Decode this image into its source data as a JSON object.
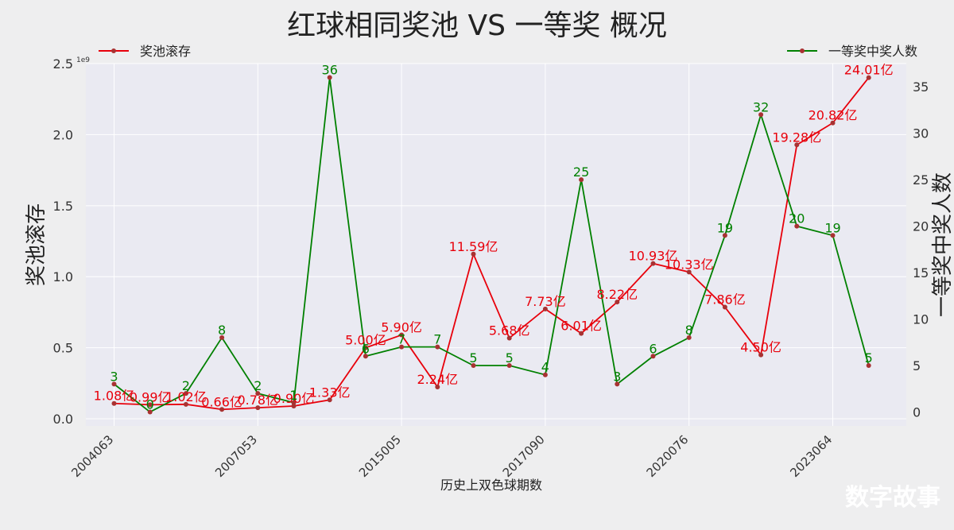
{
  "chart_data": {
    "type": "line",
    "title": "红球相同奖池 VS 一等奖 概况",
    "xlabel": "历史上双色球期数",
    "ylabel_left": "奖池滚存",
    "ylabel_right": "一等奖中奖人数",
    "left_scale_note": "1e9",
    "x_tick_labels": [
      "2004063",
      "2007053",
      "2015005",
      "2017090",
      "2020076",
      "2023064"
    ],
    "ylim_left": [
      -0.05,
      2.5
    ],
    "ylim_right": [
      -1.5,
      37.5
    ],
    "left_ticks": [
      "0.0",
      "0.5",
      "1.0",
      "1.5",
      "2.0",
      "2.5"
    ],
    "left_tick_values": [
      0,
      0.5,
      1.0,
      1.5,
      2.0,
      2.5
    ],
    "right_ticks": [
      "0",
      "5",
      "10",
      "15",
      "20",
      "25",
      "30",
      "35"
    ],
    "right_tick_values": [
      0,
      5,
      10,
      15,
      20,
      25,
      30,
      35
    ],
    "grid": true,
    "series": [
      {
        "name": "奖池滚存",
        "axis": "left",
        "color": "#e8000b",
        "values": [
          0.108,
          0.099,
          0.102,
          0.066,
          0.078,
          0.09,
          0.133,
          0.5,
          0.59,
          0.224,
          1.159,
          0.568,
          0.773,
          0.601,
          0.822,
          1.093,
          1.033,
          0.786,
          0.45,
          1.928,
          2.082,
          2.401
        ],
        "labels": [
          "1.08亿",
          "0.99亿",
          "1.02亿",
          "0.66亿",
          "0.78亿",
          "0.90亿",
          "1.33亿",
          "5.00亿",
          "5.90亿",
          "2.24亿",
          "11.59亿",
          "5.68亿",
          "7.73亿",
          "6.01亿",
          "8.22亿",
          "10.93亿",
          "10.33亿",
          "7.86亿",
          "4.50亿",
          "19.28亿",
          "20.82亿",
          "24.01亿"
        ]
      },
      {
        "name": "一等奖中奖人数",
        "axis": "right",
        "color": "#008000",
        "values": [
          3,
          0,
          2,
          8,
          2,
          1,
          36,
          6,
          7,
          7,
          5,
          5,
          4,
          25,
          3,
          6,
          8,
          19,
          32,
          20,
          19,
          5
        ],
        "labels": [
          "3",
          "0",
          "2",
          "8",
          "2",
          "1",
          "36",
          "6",
          "7",
          "7",
          "5",
          "5",
          "4",
          "25",
          "3",
          "6",
          "8",
          "19",
          "32",
          "20",
          "19",
          "5"
        ]
      }
    ],
    "legend": [
      "top-left",
      "top-right"
    ]
  },
  "watermark": "数字故事"
}
